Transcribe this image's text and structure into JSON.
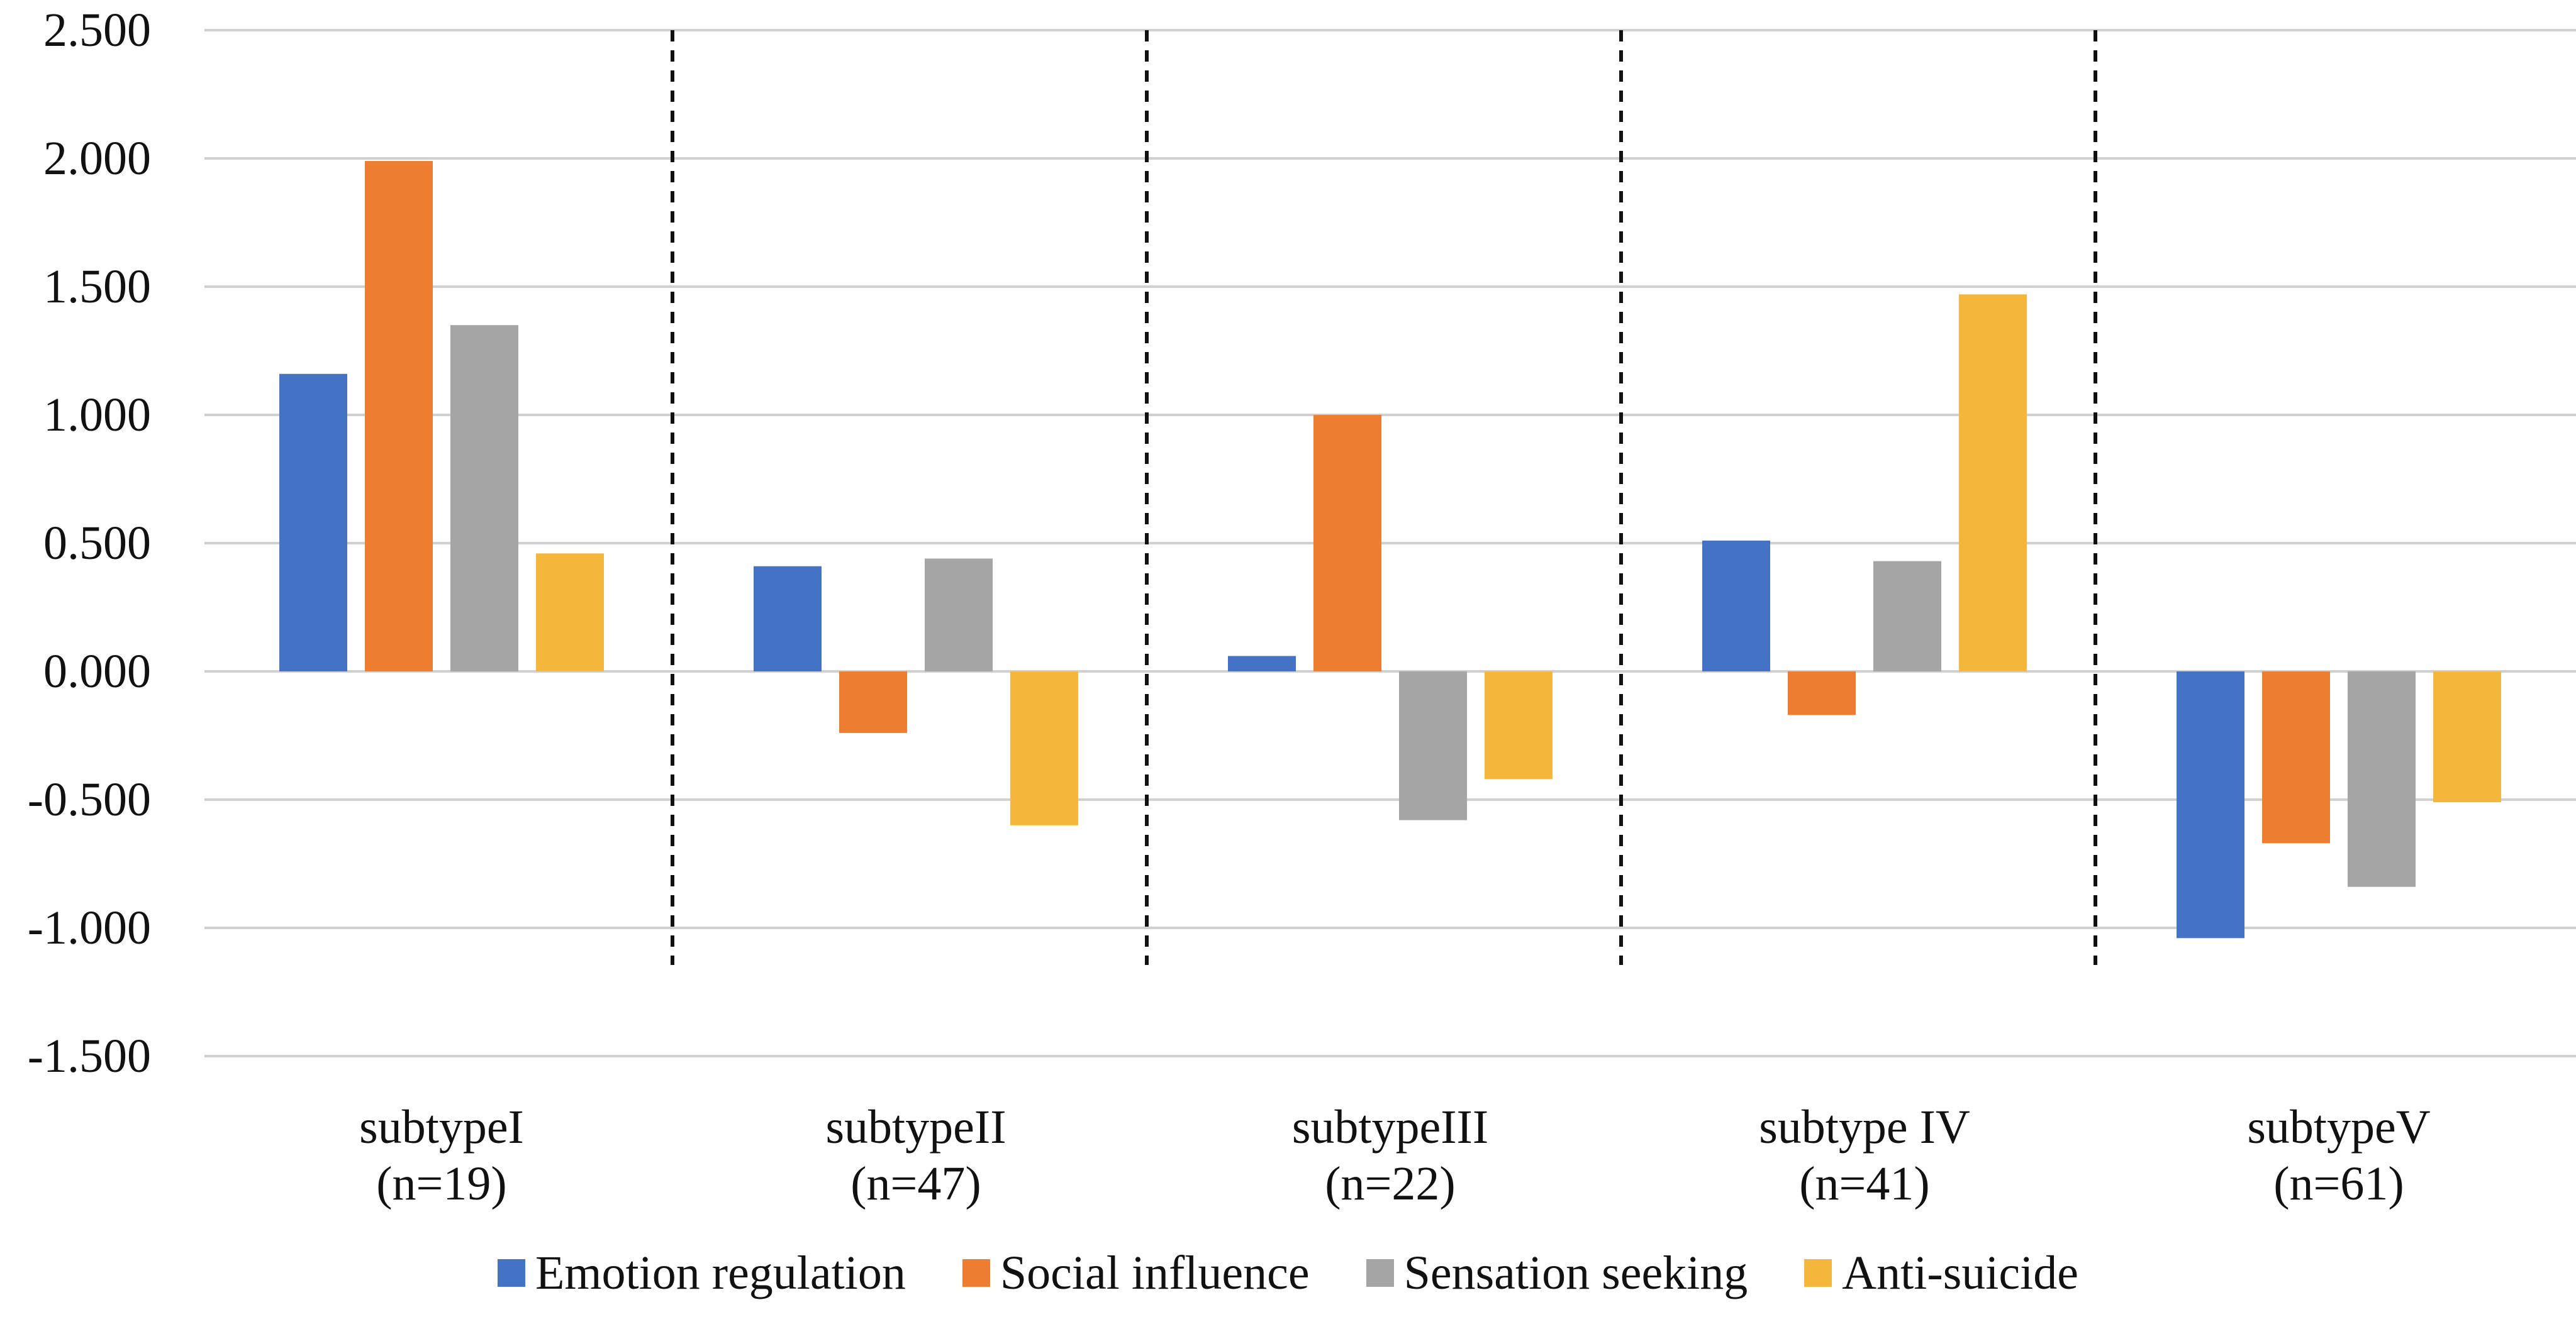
{
  "chart_data": {
    "type": "bar",
    "title": "",
    "xlabel": "",
    "ylabel": "",
    "ylim": [
      -1.5,
      2.5
    ],
    "y_ticks": [
      "2.500",
      "2.000",
      "1.500",
      "1.000",
      "0.500",
      "0.000",
      "-0.500",
      "-1.000",
      "-1.500"
    ],
    "y_tick_values": [
      2.5,
      2.0,
      1.5,
      1.0,
      0.5,
      0.0,
      -0.5,
      -1.0,
      -1.5
    ],
    "grid": true,
    "legend_position": "bottom",
    "group_separators": "dashed",
    "categories": [
      {
        "name": "subtypeI",
        "n": "(n=19)"
      },
      {
        "name": "subtypeII",
        "n": "(n=47)"
      },
      {
        "name": "subtypeIII",
        "n": "(n=22)"
      },
      {
        "name": "subtype IV",
        "n": "(n=41)"
      },
      {
        "name": "subtypeV",
        "n": "(n=61)"
      }
    ],
    "series": [
      {
        "name": "Emotion regulation",
        "color": "#4472C4",
        "values": [
          1.16,
          0.41,
          0.06,
          0.51,
          -1.04
        ]
      },
      {
        "name": "Social influence",
        "color": "#ED7D31",
        "values": [
          1.99,
          -0.24,
          1.0,
          -0.17,
          -0.67
        ]
      },
      {
        "name": "Sensation seeking",
        "color": "#A5A5A5",
        "values": [
          1.35,
          0.44,
          -0.58,
          0.43,
          -0.84
        ]
      },
      {
        "name": "Anti-suicide",
        "color": "#F4B73B",
        "values": [
          0.46,
          -0.6,
          -0.42,
          1.47,
          -0.51
        ]
      }
    ]
  }
}
